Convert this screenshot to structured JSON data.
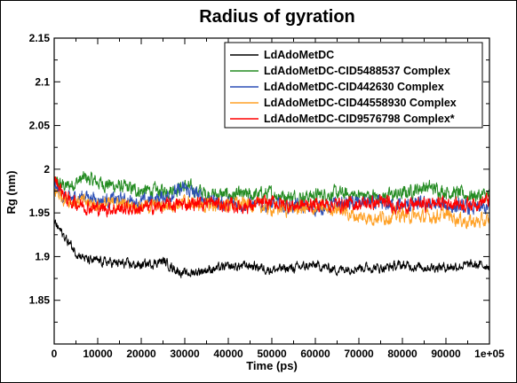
{
  "chart_data": {
    "type": "line",
    "title": "Radius of gyration",
    "xlabel": "Time (ps)",
    "ylabel": "Rg (nm)",
    "xlim": [
      0,
      100000
    ],
    "ylim": [
      1.8,
      2.15
    ],
    "xticks": [
      0,
      10000,
      20000,
      30000,
      40000,
      50000,
      60000,
      70000,
      80000,
      90000,
      100000
    ],
    "xtick_labels": [
      "0",
      "10000",
      "20000",
      "30000",
      "40000",
      "50000",
      "60000",
      "70000",
      "80000",
      "90000",
      "1e+05"
    ],
    "yticks": [
      1.85,
      1.9,
      1.95,
      2.0,
      2.05,
      2.1,
      2.15
    ],
    "ytick_labels": [
      "1.85",
      "1.9",
      "1.95",
      "2",
      "2.05",
      "2.1",
      "2.15"
    ],
    "grid": false,
    "legend_position": "top-right",
    "series": [
      {
        "name": "LdAdoMetDC",
        "color": "#000000",
        "noise": 0.004,
        "x": [
          0,
          2000,
          5000,
          8000,
          10000,
          15000,
          20000,
          25000,
          28000,
          30000,
          35000,
          40000,
          45000,
          50000,
          55000,
          60000,
          65000,
          70000,
          75000,
          80000,
          85000,
          90000,
          95000,
          100000
        ],
        "y": [
          1.94,
          1.925,
          1.905,
          1.895,
          1.895,
          1.892,
          1.89,
          1.895,
          1.885,
          1.88,
          1.885,
          1.888,
          1.89,
          1.885,
          1.887,
          1.89,
          1.885,
          1.888,
          1.887,
          1.89,
          1.888,
          1.888,
          1.89,
          1.89
        ]
      },
      {
        "name": "LdAdoMetDC-CID5488537 Complex",
        "color": "#238b21",
        "noise": 0.006,
        "x": [
          0,
          3000,
          7000,
          10000,
          15000,
          20000,
          25000,
          30000,
          35000,
          40000,
          45000,
          50000,
          55000,
          60000,
          65000,
          70000,
          75000,
          80000,
          85000,
          90000,
          95000,
          100000
        ],
        "y": [
          1.985,
          1.98,
          1.99,
          1.985,
          1.98,
          1.975,
          1.975,
          1.98,
          1.972,
          1.97,
          1.97,
          1.972,
          1.968,
          1.97,
          1.972,
          1.97,
          1.968,
          1.972,
          1.98,
          1.975,
          1.97,
          1.97
        ]
      },
      {
        "name": "LdAdoMetDC-CID442630 Complex",
        "color": "#2c4fb5",
        "noise": 0.006,
        "x": [
          0,
          3000,
          7000,
          10000,
          15000,
          20000,
          25000,
          30000,
          35000,
          40000,
          45000,
          50000,
          55000,
          60000,
          65000,
          70000,
          75000,
          80000,
          85000,
          90000,
          95000,
          100000
        ],
        "y": [
          1.98,
          1.965,
          1.97,
          1.965,
          1.965,
          1.962,
          1.968,
          1.978,
          1.965,
          1.96,
          1.96,
          1.958,
          1.958,
          1.955,
          1.96,
          1.962,
          1.96,
          1.958,
          1.96,
          1.958,
          1.955,
          1.955
        ]
      },
      {
        "name": "LdAdoMetDC-CID44558930 Complex",
        "color": "#ffa126",
        "noise": 0.006,
        "x": [
          0,
          3000,
          7000,
          10000,
          15000,
          20000,
          25000,
          30000,
          35000,
          40000,
          45000,
          50000,
          55000,
          60000,
          65000,
          70000,
          75000,
          80000,
          85000,
          90000,
          95000,
          100000
        ],
        "y": [
          1.975,
          1.965,
          1.962,
          1.96,
          1.96,
          1.958,
          1.958,
          1.962,
          1.958,
          1.96,
          1.96,
          1.955,
          1.955,
          1.955,
          1.955,
          1.945,
          1.945,
          1.948,
          1.945,
          1.948,
          1.94,
          1.94
        ]
      },
      {
        "name": "LdAdoMetDC-CID9576798 Complex*",
        "color": "#ff0000",
        "noise": 0.006,
        "x": [
          0,
          3000,
          7000,
          10000,
          15000,
          20000,
          25000,
          30000,
          35000,
          40000,
          45000,
          50000,
          55000,
          60000,
          65000,
          70000,
          75000,
          80000,
          85000,
          90000,
          95000,
          100000
        ],
        "y": [
          1.99,
          1.965,
          1.958,
          1.955,
          1.955,
          1.955,
          1.958,
          1.96,
          1.962,
          1.958,
          1.958,
          1.962,
          1.958,
          1.96,
          1.96,
          1.96,
          1.962,
          1.958,
          1.96,
          1.962,
          1.96,
          1.965
        ]
      }
    ]
  }
}
